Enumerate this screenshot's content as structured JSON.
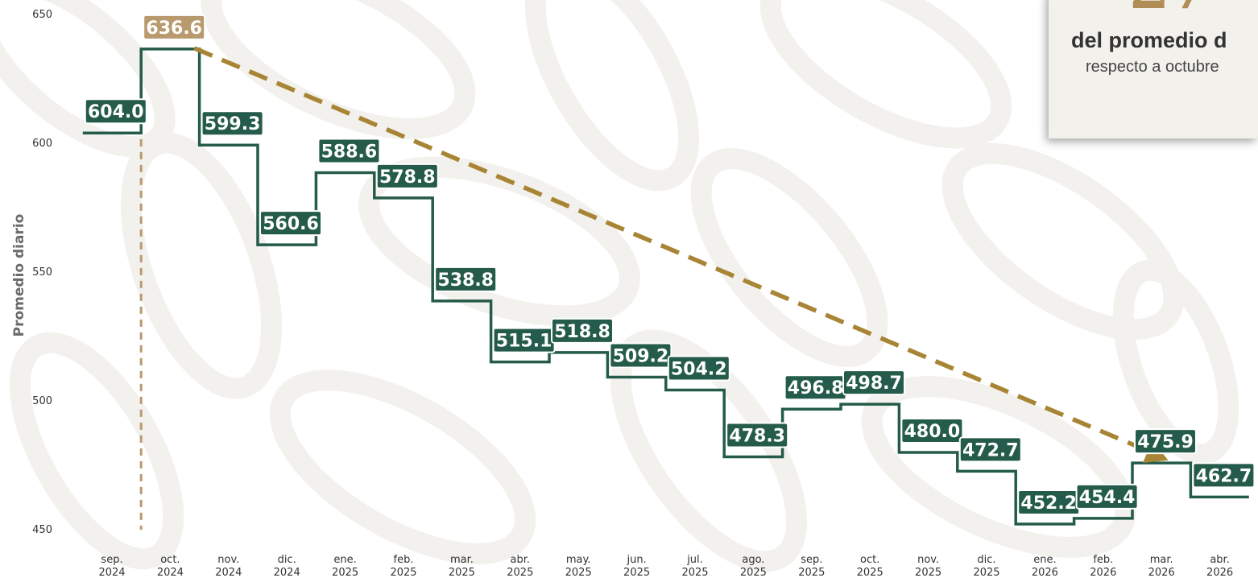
{
  "chart_data": {
    "type": "line",
    "step": true,
    "ylabel": "Promedio diario",
    "ylim": [
      450,
      650
    ],
    "yticks": [
      450,
      500,
      550,
      600,
      650
    ],
    "categories": [
      [
        "sep.",
        "2024"
      ],
      [
        "oct.",
        "2024"
      ],
      [
        "nov.",
        "2024"
      ],
      [
        "dic.",
        "2024"
      ],
      [
        "ene.",
        "2025"
      ],
      [
        "feb.",
        "2025"
      ],
      [
        "mar.",
        "2025"
      ],
      [
        "abr.",
        "2025"
      ],
      [
        "may.",
        "2025"
      ],
      [
        "jun.",
        "2025"
      ],
      [
        "jul.",
        "2025"
      ],
      [
        "ago.",
        "2025"
      ],
      [
        "sep.",
        "2025"
      ],
      [
        "oct.",
        "2025"
      ],
      [
        "nov.",
        "2025"
      ],
      [
        "dic.",
        "2025"
      ],
      [
        "ene.",
        "2026"
      ],
      [
        "feb.",
        "2026"
      ],
      [
        "mar.",
        "2026"
      ],
      [
        "abr.",
        "2026"
      ]
    ],
    "values": [
      604.0,
      636.6,
      599.3,
      560.6,
      588.6,
      578.8,
      538.8,
      515.1,
      518.8,
      509.2,
      504.2,
      478.3,
      496.8,
      498.7,
      480.0,
      472.7,
      452.2,
      454.4,
      475.9,
      462.7
    ],
    "value_labels": [
      "604.0",
      "636.6",
      "599.3",
      "560.6",
      "588.6",
      "578.8",
      "538.8",
      "515.1",
      "518.8",
      "509.2",
      "504.2",
      "478.3",
      "496.8",
      "498.7",
      "480.0",
      "472.7",
      "452.2",
      "454.4",
      "475.9",
      "462.7"
    ],
    "highlight_index": 1,
    "reference_line": "oct. 2024",
    "trend_arrow": {
      "from": "oct. 2024",
      "to": "mar. 2026"
    },
    "colors": {
      "series": "#245b4a",
      "highlight": "#b89a6e",
      "trend": "#a88535",
      "reference": "#b89a6e"
    },
    "grid": false
  },
  "callout": {
    "line1": "del promedio d",
    "line2": "respecto a octubre"
  }
}
